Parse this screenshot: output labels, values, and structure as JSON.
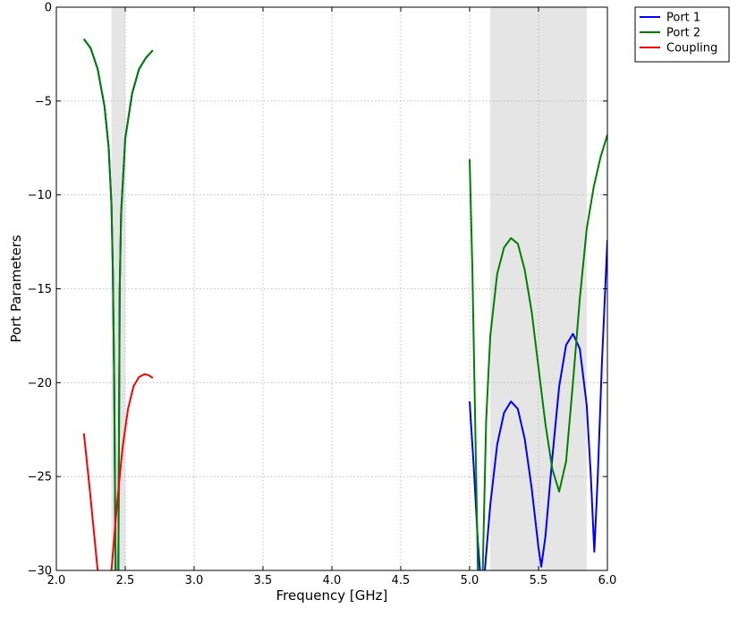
{
  "chart_data": {
    "type": "line",
    "xlabel": "Frequency [GHz]",
    "ylabel": "Port Parameters",
    "xlim": [
      2.0,
      6.0
    ],
    "ylim": [
      -30,
      0
    ],
    "xticks": [
      2.0,
      2.5,
      3.0,
      3.5,
      4.0,
      4.5,
      5.0,
      5.5,
      6.0
    ],
    "xtick_labels": [
      "2.0",
      "2.5",
      "3.0",
      "3.5",
      "4.0",
      "4.5",
      "5.0",
      "5.5",
      "6.0"
    ],
    "yticks": [
      0,
      -5,
      -10,
      -15,
      -20,
      -25,
      -30
    ],
    "ytick_labels": [
      "0",
      "−5",
      "−10",
      "−15",
      "−20",
      "−25",
      "−30"
    ],
    "grid": true,
    "legend_placement": "outside-top-right",
    "shaded_bands": [
      {
        "x": [
          2.4,
          2.5
        ],
        "color": "#e5e5e5"
      },
      {
        "x": [
          5.15,
          5.85
        ],
        "color": "#e5e5e5"
      }
    ],
    "series": [
      {
        "name": "Port 1",
        "color": "#0000ff",
        "segments": [
          [
            [
              2.2,
              -1.7
            ],
            [
              2.25,
              -2.2
            ],
            [
              2.3,
              -3.3
            ],
            [
              2.35,
              -5.3
            ],
            [
              2.38,
              -7.5
            ],
            [
              2.4,
              -10.5
            ],
            [
              2.41,
              -14
            ],
            [
              2.42,
              -20
            ],
            [
              2.43,
              -30
            ]
          ],
          [
            [
              2.45,
              -30
            ],
            [
              2.46,
              -15
            ],
            [
              2.47,
              -11
            ],
            [
              2.5,
              -7
            ],
            [
              2.55,
              -4.6
            ],
            [
              2.6,
              -3.3
            ],
            [
              2.65,
              -2.7
            ],
            [
              2.7,
              -2.3
            ]
          ],
          [
            [
              5.0,
              -21
            ],
            [
              5.03,
              -24.5
            ],
            [
              5.06,
              -28.5
            ],
            [
              5.075,
              -30
            ]
          ],
          [
            [
              5.11,
              -30
            ],
            [
              5.15,
              -26.5
            ],
            [
              5.2,
              -23.3
            ],
            [
              5.25,
              -21.6
            ],
            [
              5.3,
              -21.0
            ],
            [
              5.35,
              -21.4
            ],
            [
              5.4,
              -23.0
            ],
            [
              5.45,
              -25.6
            ],
            [
              5.5,
              -28.8
            ],
            [
              5.52,
              -29.8
            ],
            [
              5.55,
              -28.2
            ],
            [
              5.6,
              -24.0
            ],
            [
              5.65,
              -20.2
            ],
            [
              5.7,
              -18.0
            ],
            [
              5.75,
              -17.4
            ],
            [
              5.8,
              -18.2
            ],
            [
              5.85,
              -21.2
            ],
            [
              5.88,
              -25.0
            ],
            [
              5.905,
              -29.0
            ],
            [
              5.93,
              -25.0
            ],
            [
              5.96,
              -19.0
            ],
            [
              6.0,
              -12.4
            ]
          ]
        ]
      },
      {
        "name": "Port 2",
        "color": "#008000",
        "segments": [
          [
            [
              2.2,
              -1.7
            ],
            [
              2.25,
              -2.2
            ],
            [
              2.3,
              -3.3
            ],
            [
              2.35,
              -5.3
            ],
            [
              2.38,
              -7.5
            ],
            [
              2.4,
              -10.5
            ],
            [
              2.41,
              -14
            ],
            [
              2.42,
              -20
            ],
            [
              2.43,
              -30
            ]
          ],
          [
            [
              2.45,
              -30
            ],
            [
              2.46,
              -15
            ],
            [
              2.47,
              -11
            ],
            [
              2.5,
              -7
            ],
            [
              2.55,
              -4.6
            ],
            [
              2.6,
              -3.3
            ],
            [
              2.65,
              -2.7
            ],
            [
              2.7,
              -2.3
            ]
          ],
          [
            [
              5.0,
              -8.1
            ],
            [
              5.02,
              -14
            ],
            [
              5.04,
              -22
            ],
            [
              5.06,
              -30
            ]
          ],
          [
            [
              5.095,
              -30
            ],
            [
              5.12,
              -22
            ],
            [
              5.15,
              -17.5
            ],
            [
              5.2,
              -14.2
            ],
            [
              5.25,
              -12.8
            ],
            [
              5.3,
              -12.3
            ],
            [
              5.35,
              -12.6
            ],
            [
              5.4,
              -14.0
            ],
            [
              5.45,
              -16.2
            ],
            [
              5.5,
              -19.2
            ],
            [
              5.55,
              -22.2
            ],
            [
              5.6,
              -24.6
            ],
            [
              5.65,
              -25.8
            ],
            [
              5.7,
              -24.2
            ],
            [
              5.75,
              -20.0
            ],
            [
              5.8,
              -15.5
            ],
            [
              5.85,
              -11.8
            ],
            [
              5.9,
              -9.6
            ],
            [
              5.95,
              -8.0
            ],
            [
              6.0,
              -6.8
            ]
          ]
        ]
      },
      {
        "name": "Coupling",
        "color": "#ff0000",
        "segments": [
          [
            [
              2.2,
              -22.7
            ],
            [
              2.24,
              -25.5
            ],
            [
              2.28,
              -28.5
            ],
            [
              2.3,
              -30
            ]
          ],
          [
            [
              2.4,
              -30
            ],
            [
              2.44,
              -26.5
            ],
            [
              2.48,
              -23.5
            ],
            [
              2.52,
              -21.4
            ],
            [
              2.56,
              -20.2
            ],
            [
              2.6,
              -19.7
            ],
            [
              2.64,
              -19.55
            ],
            [
              2.67,
              -19.6
            ],
            [
              2.7,
              -19.75
            ]
          ]
        ]
      }
    ]
  }
}
